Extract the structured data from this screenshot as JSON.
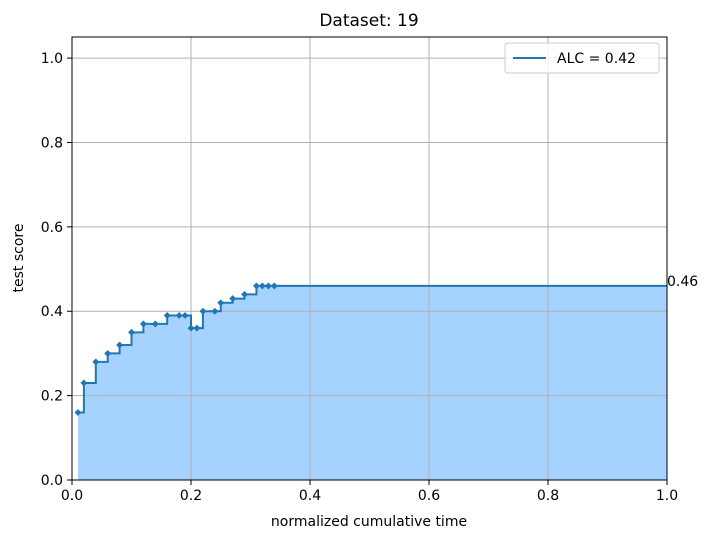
{
  "chart_data": {
    "type": "area",
    "title": "Dataset: 19",
    "xlabel": "normalized cumulative time",
    "ylabel": "test score",
    "xlim": [
      0,
      1
    ],
    "ylim": [
      0,
      1.05
    ],
    "x_ticks": [
      0.0,
      0.2,
      0.4,
      0.6,
      0.8,
      1.0
    ],
    "x_tick_labels": [
      "0.0",
      "0.2",
      "0.4",
      "0.6",
      "0.8",
      "1.0"
    ],
    "y_ticks": [
      0.0,
      0.2,
      0.4,
      0.6,
      0.8,
      1.0
    ],
    "y_tick_labels": [
      "0.0",
      "0.2",
      "0.4",
      "0.6",
      "0.8",
      "1.0"
    ],
    "grid": true,
    "legend_position": "top-right",
    "end_label": "0.46",
    "series": [
      {
        "name": "ALC = 0.42",
        "step": "post",
        "line_color": "#1f77b4",
        "fill_color": "#a6d2ff",
        "x": [
          0.01,
          0.02,
          0.04,
          0.06,
          0.08,
          0.1,
          0.12,
          0.14,
          0.16,
          0.18,
          0.19,
          0.2,
          0.21,
          0.22,
          0.24,
          0.25,
          0.27,
          0.29,
          0.31,
          0.32,
          0.33,
          0.34
        ],
        "y": [
          0.16,
          0.23,
          0.28,
          0.3,
          0.32,
          0.35,
          0.37,
          0.37,
          0.39,
          0.39,
          0.39,
          0.36,
          0.36,
          0.4,
          0.4,
          0.42,
          0.43,
          0.44,
          0.46,
          0.46,
          0.46,
          0.46
        ],
        "extends_to": 1.0
      }
    ]
  }
}
